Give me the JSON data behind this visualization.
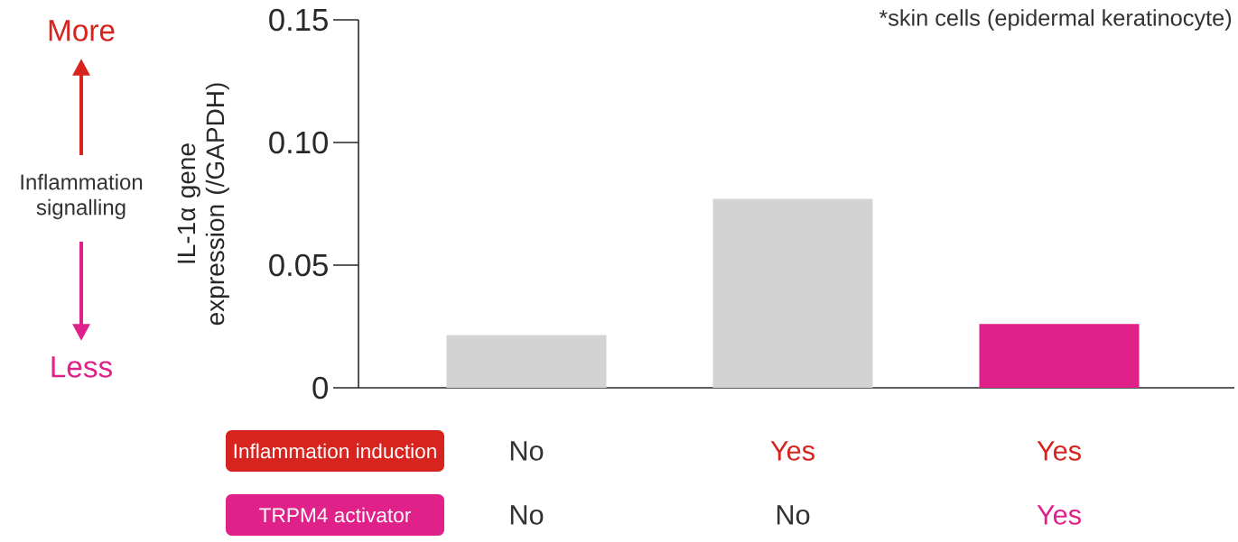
{
  "chart_data": {
    "type": "bar",
    "ylabel": "IL-1α gene expression (/GAPDH)",
    "categories": [
      null,
      null,
      null
    ],
    "values": [
      0.0215,
      0.077,
      0.026
    ],
    "colors": [
      "#d3d3d3",
      "#d3d3d3",
      "#e0218a"
    ],
    "ylim": [
      0,
      0.15
    ],
    "yticks": [
      0,
      0.05,
      {
        "value": 0.1,
        "label": "0.10"
      },
      0.15
    ],
    "annotations": [
      "*skin cells (epidermal keratinocyte)",
      "More",
      "Inflammation signalling",
      "Less",
      "Inflammation induction",
      "No",
      "Yes",
      "Yes",
      "TRPM4 activator",
      "No",
      "No",
      "Yes"
    ]
  }
}
